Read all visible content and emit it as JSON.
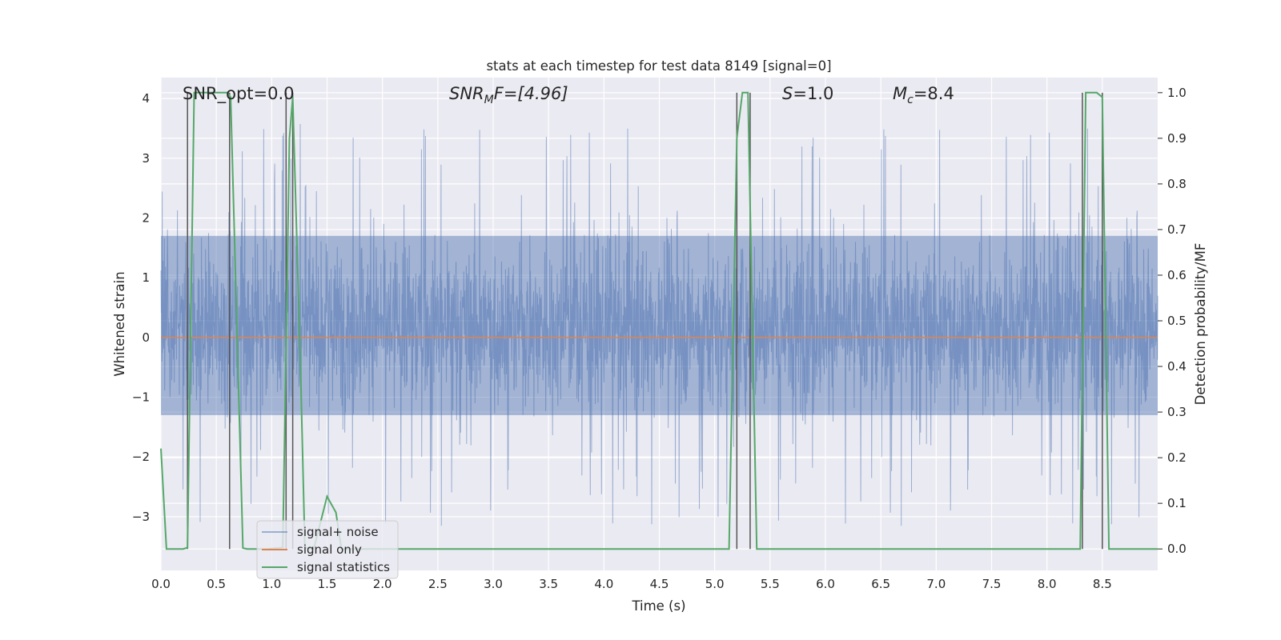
{
  "chart_data": {
    "type": "line",
    "title": "stats at each timestep for test data 8149 [signal=0]",
    "xlabel": "Time (s)",
    "ylabel": "Whitened strain",
    "y2label": "Detection probability/MF",
    "xlim": [
      0.0,
      9.0
    ],
    "ylim": [
      -3.9,
      4.35
    ],
    "y2lim": [
      -0.047,
      1.033
    ],
    "xticks": [
      0.0,
      0.5,
      1.0,
      1.5,
      2.0,
      2.5,
      3.0,
      3.5,
      4.0,
      4.5,
      5.0,
      5.5,
      6.0,
      6.5,
      7.0,
      7.5,
      8.0,
      8.5
    ],
    "xtick_labels": [
      "0.0",
      "0.5",
      "1.0",
      "1.5",
      "2.0",
      "2.5",
      "3.0",
      "3.5",
      "4.0",
      "4.5",
      "5.0",
      "5.5",
      "6.0",
      "6.5",
      "7.0",
      "7.5",
      "8.0",
      "8.5"
    ],
    "yticks": [
      4,
      3,
      2,
      1,
      0,
      -1,
      -2,
      -3
    ],
    "ytick_labels": [
      "4",
      "3",
      "2",
      "1",
      "0",
      "−1",
      "−2",
      "−3"
    ],
    "y2ticks": [
      1.0,
      0.9,
      0.8,
      0.7,
      0.6,
      0.5,
      0.4,
      0.3,
      0.2,
      0.1,
      0.0
    ],
    "y2tick_labels": [
      "1.0",
      "0.9",
      "0.8",
      "0.7",
      "0.6",
      "0.5",
      "0.4",
      "0.3",
      "0.2",
      "0.1",
      "0.0"
    ],
    "grid": true,
    "legend_position": "lower-left",
    "annotations": {
      "snr_opt": "SNR_opt=0.0",
      "snr_mf_main": "SNR",
      "snr_mf_sub": "M",
      "snr_mf_rest": "F=[4.96]",
      "s_main": "S",
      "s_rest": "=1.0",
      "mc_main": "M",
      "mc_sub": "c",
      "mc_rest": "=8.4"
    },
    "series": [
      {
        "name": "signal+ noise",
        "color": "#4c72b0",
        "description_values": {
          "typical_range": [
            -1.3,
            1.7
          ],
          "peak_max": 4.0,
          "peak_min": -3.55
        },
        "sample_rate_hz": 2048
      },
      {
        "name": "signal only",
        "color": "#dd8452",
        "values_constant": 0.0
      },
      {
        "name": "signal statistics",
        "color": "#55a868",
        "axis": "y2",
        "x": [
          0.0,
          0.05,
          0.2,
          0.24,
          0.3,
          0.6,
          0.63,
          0.74,
          0.78,
          0.95,
          1.1,
          1.16,
          1.19,
          1.26,
          1.3,
          1.38,
          1.5,
          1.58,
          1.63,
          2.0,
          5.13,
          5.2,
          5.25,
          5.3,
          5.38,
          5.5,
          8.3,
          8.35,
          8.45,
          8.5,
          8.56,
          9.0
        ],
        "y": [
          0.22,
          0.0,
          0.0,
          0.003,
          1.0,
          1.0,
          0.99,
          0.002,
          0.0,
          0.0,
          0.003,
          0.9,
          0.99,
          0.4,
          0.003,
          0.0,
          0.115,
          0.08,
          0.0,
          0.0,
          0.0,
          0.9,
          1.0,
          1.0,
          0.0,
          0.0,
          0.0,
          1.0,
          1.0,
          0.99,
          0.0,
          0.0
        ]
      }
    ],
    "marker_lines": {
      "color": "#555555",
      "x": [
        0.24,
        0.62,
        1.13,
        1.19,
        5.2,
        5.32,
        8.32,
        8.5
      ],
      "y2_top": 1.0,
      "y2_bottom": 0.0
    }
  },
  "legend": {
    "items": [
      {
        "label": "signal+ noise",
        "color": "#4c72b0"
      },
      {
        "label": "signal only",
        "color": "#dd8452"
      },
      {
        "label": "signal statistics",
        "color": "#55a868"
      }
    ]
  }
}
